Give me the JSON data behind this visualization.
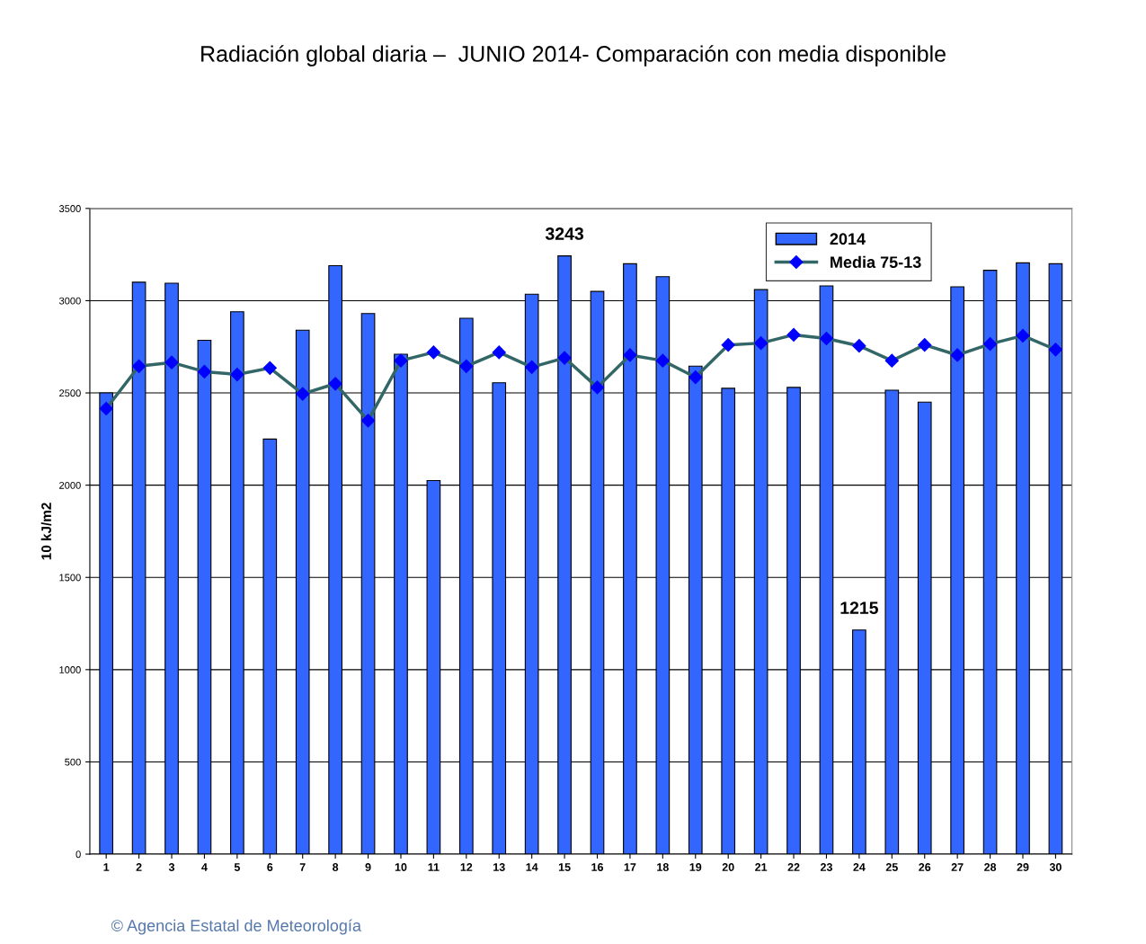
{
  "chart_data": {
    "type": "bar",
    "title": "Radiación global diaria –  JUNIO 2014- Comparación con media disponible",
    "ylabel": "10 kJ/m2",
    "categories": [
      "1",
      "2",
      "3",
      "4",
      "5",
      "6",
      "7",
      "8",
      "9",
      "10",
      "11",
      "12",
      "13",
      "14",
      "15",
      "16",
      "17",
      "18",
      "19",
      "20",
      "21",
      "22",
      "23",
      "24",
      "25",
      "26",
      "27",
      "28",
      "29",
      "30"
    ],
    "series": [
      {
        "name": "2014",
        "color": "#3366ff",
        "values": [
          2500,
          3100,
          3095,
          2785,
          2940,
          2250,
          2840,
          3190,
          2930,
          2710,
          2025,
          2905,
          2555,
          3035,
          3243,
          3050,
          3200,
          3130,
          2645,
          2525,
          3060,
          2530,
          3080,
          1215,
          2515,
          2450,
          3075,
          3165,
          3205,
          3200
        ],
        "value_labels": [
          null,
          null,
          null,
          null,
          null,
          null,
          null,
          null,
          null,
          null,
          null,
          null,
          null,
          null,
          "3243",
          null,
          null,
          null,
          null,
          null,
          null,
          null,
          null,
          "1215",
          null,
          null,
          null,
          null,
          null,
          null
        ]
      },
      {
        "name": "Media 75-13",
        "type": "line",
        "color": "#336666",
        "marker": "diamond",
        "values": [
          2415,
          2645,
          2665,
          2615,
          2600,
          2635,
          2495,
          2550,
          2350,
          2675,
          2720,
          2645,
          2720,
          2640,
          2690,
          2530,
          2705,
          2675,
          2585,
          2760,
          2770,
          2815,
          2795,
          2755,
          2675,
          2760,
          2705,
          2765,
          2810,
          2735
        ]
      }
    ],
    "ylim": [
      0,
      3500
    ],
    "yticks": [
      0,
      500,
      1000,
      1500,
      2000,
      2500,
      3000,
      3500
    ],
    "grid": "y",
    "legend": "top right",
    "annotations": [
      "© Agencia Estatal de Meteorología"
    ]
  }
}
